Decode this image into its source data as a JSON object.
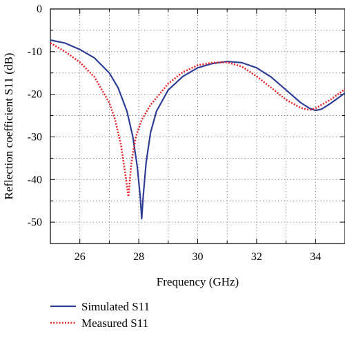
{
  "chart_data": {
    "type": "line",
    "title": "",
    "xlabel": "Frequency (GHz)",
    "ylabel": "Reflection coefficient S11 (dB)",
    "xlim": [
      25,
      35
    ],
    "ylim": [
      -55,
      0
    ],
    "x_ticks": [
      26,
      28,
      30,
      32,
      34
    ],
    "y_ticks": [
      0,
      -10,
      -20,
      -30,
      -40,
      -50
    ],
    "x_tick_labels": [
      "26",
      "28",
      "30",
      "32",
      "34"
    ],
    "y_tick_labels": [
      "0",
      "-10",
      "-20",
      "-30",
      "-40",
      "-50"
    ],
    "grid": true,
    "grid_style": "dotted",
    "legend_position": "bottom-left, below plot",
    "series": [
      {
        "name": "Simulated S11",
        "color": "#2e3e96",
        "line_style": "solid",
        "x": [
          25,
          25.5,
          26,
          26.5,
          27,
          27.3,
          27.6,
          27.8,
          27.95,
          28.05,
          28.1,
          28.15,
          28.25,
          28.4,
          28.6,
          29,
          29.5,
          30,
          30.5,
          31,
          31.5,
          32,
          32.5,
          33,
          33.5,
          33.8,
          34,
          34.2,
          34.5,
          35
        ],
        "y": [
          -7.3,
          -8,
          -9.5,
          -11.5,
          -15,
          -18.5,
          -24,
          -30,
          -37,
          -44,
          -49.2,
          -44,
          -36,
          -29,
          -24,
          -19,
          -15.8,
          -13.8,
          -12.8,
          -12.3,
          -12.6,
          -13.8,
          -16,
          -19,
          -22,
          -23.3,
          -23.8,
          -23.5,
          -22.2,
          -19.7
        ]
      },
      {
        "name": "Measured S11",
        "color": "#e8222a",
        "line_style": "dotted",
        "x": [
          25,
          25.5,
          26,
          26.5,
          27,
          27.2,
          27.4,
          27.55,
          27.65,
          27.75,
          27.9,
          28.1,
          28.4,
          29,
          29.5,
          30,
          30.5,
          31,
          31.5,
          32,
          32.5,
          33,
          33.5,
          33.8,
          34,
          34.2,
          34.5,
          35
        ],
        "y": [
          -8,
          -10,
          -12.5,
          -16,
          -22,
          -26,
          -32,
          -39,
          -44,
          -36,
          -30,
          -26,
          -22.5,
          -17.5,
          -14.8,
          -13.2,
          -12.6,
          -12.5,
          -13.5,
          -15.8,
          -18.5,
          -21.3,
          -23.2,
          -23.7,
          -23.3,
          -22.5,
          -21.3,
          -18.8
        ]
      }
    ]
  }
}
